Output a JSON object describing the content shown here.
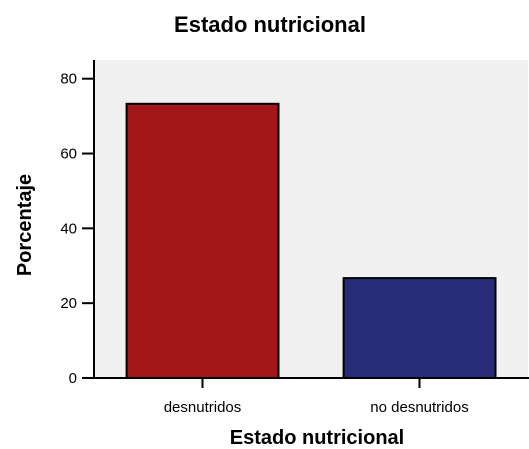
{
  "chart_data": {
    "type": "bar",
    "title": "Estado nutricional",
    "xlabel": "Estado nutricional",
    "ylabel": "Porcentaje",
    "categories": [
      "desnutridos",
      "no desnutridos"
    ],
    "values": [
      73.3,
      26.7
    ],
    "ylim": [
      0,
      85
    ],
    "yticks": [
      0,
      20,
      40,
      60,
      80
    ],
    "grid": false,
    "legend": "none",
    "colors": {
      "plot_background": "#f0f0f0",
      "bars": [
        "#a3161a",
        "#282c78"
      ],
      "bar_stroke": "#000000"
    }
  }
}
